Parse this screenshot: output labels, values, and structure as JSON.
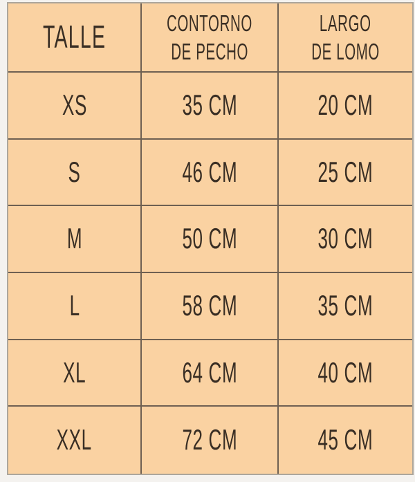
{
  "table": {
    "header": {
      "col1": "TALLE",
      "col2_line1": "CONTORNO",
      "col2_line2": "DE PECHO",
      "col3_line1": "LARGO",
      "col3_line2": "DE LOMO"
    },
    "rows": [
      {
        "size": "XS",
        "chest": "35 CM",
        "back": "20 CM"
      },
      {
        "size": "S",
        "chest": "46 CM",
        "back": "25 CM"
      },
      {
        "size": "M",
        "chest": "50 CM",
        "back": "30 CM"
      },
      {
        "size": "L",
        "chest": "58 CM",
        "back": "35 CM"
      },
      {
        "size": "XL",
        "chest": "64 CM",
        "back": "40 CM"
      },
      {
        "size": "XXL",
        "chest": "72 CM",
        "back": "45 CM"
      }
    ]
  },
  "chart_data": {
    "type": "table",
    "columns": [
      "TALLE",
      "CONTORNO DE PECHO",
      "LARGO DE LOMO"
    ],
    "rows": [
      [
        "XS",
        "35 CM",
        "20 CM"
      ],
      [
        "S",
        "46 CM",
        "25 CM"
      ],
      [
        "M",
        "50 CM",
        "30 CM"
      ],
      [
        "L",
        "58 CM",
        "35 CM"
      ],
      [
        "XL",
        "64 CM",
        "40 CM"
      ],
      [
        "XXL",
        "72 CM",
        "45 CM"
      ]
    ],
    "sizes": [
      "XS",
      "S",
      "M",
      "L",
      "XL",
      "XXL"
    ],
    "chest_cm": [
      35,
      46,
      50,
      58,
      64,
      72
    ],
    "back_cm": [
      20,
      25,
      30,
      35,
      40,
      45
    ]
  },
  "colors": {
    "page_background": "#f4f2ef",
    "table_background": "#fad2a2",
    "grid_line": "#6e6052",
    "outer_frame": "#aca69c",
    "text": "#392e24"
  }
}
